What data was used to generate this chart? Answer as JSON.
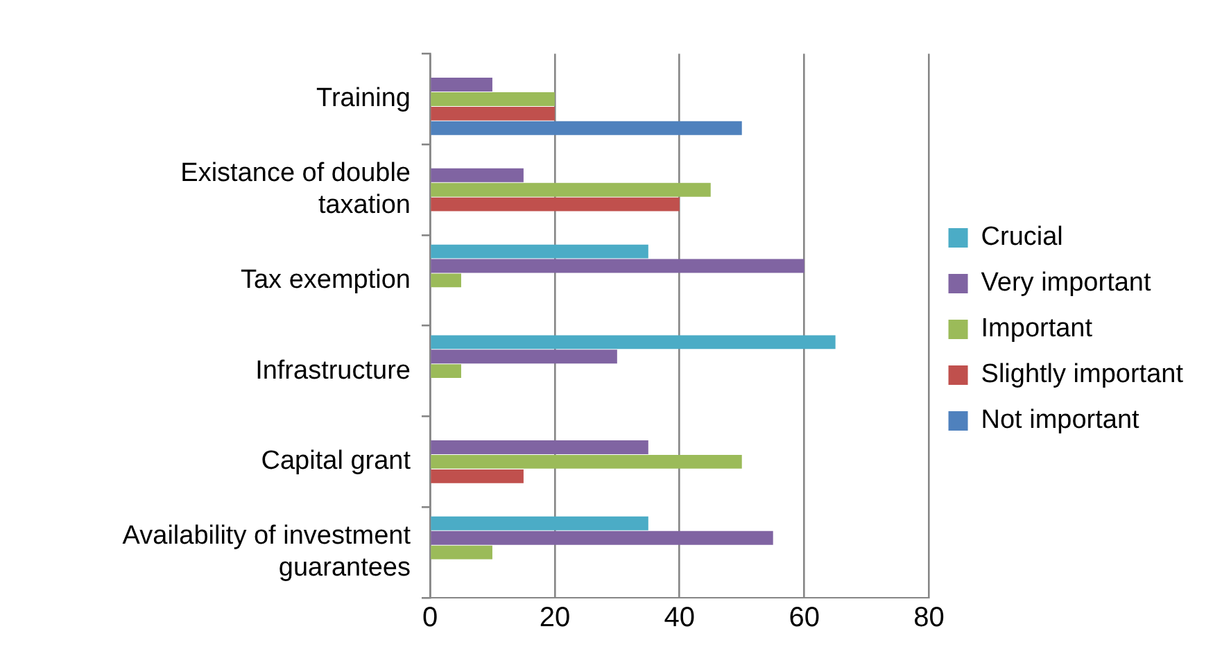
{
  "chart_data": {
    "type": "bar",
    "orientation": "horizontal",
    "categories": [
      "Training",
      "Existance of double taxation",
      "Tax exemption",
      "Infrastructure",
      "Capital grant",
      "Availability of investment guarantees"
    ],
    "series": [
      {
        "name": "Crucial",
        "color": "#4bacc6",
        "values": [
          0,
          0,
          35,
          65,
          0,
          35
        ]
      },
      {
        "name": "Very important",
        "color": "#8064a2",
        "values": [
          10,
          15,
          60,
          30,
          35,
          55
        ]
      },
      {
        "name": "Important",
        "color": "#9bbb59",
        "values": [
          20,
          45,
          5,
          5,
          50,
          10
        ]
      },
      {
        "name": "Slightly important",
        "color": "#c0504d",
        "values": [
          20,
          40,
          0,
          0,
          15,
          0
        ]
      },
      {
        "name": "Not important",
        "color": "#4f81bd",
        "values": [
          50,
          0,
          0,
          0,
          0,
          0
        ]
      }
    ],
    "xlim": [
      0,
      80
    ],
    "xticks": [
      0,
      20,
      40,
      60,
      80
    ],
    "grid": "x",
    "legend": "right"
  }
}
